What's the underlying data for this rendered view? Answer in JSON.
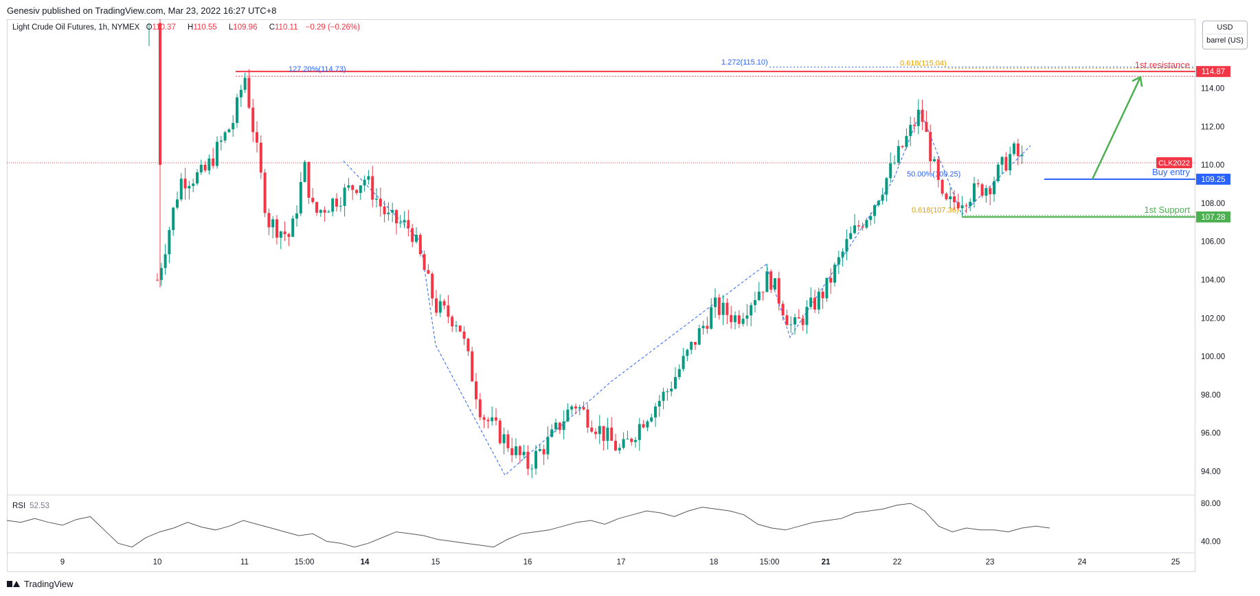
{
  "header": {
    "published_text": "Genesiv published on TradingView.com, Mar 23, 2022 16:27 UTC+8"
  },
  "legend": {
    "symbol": "Light Crude Oil Futures, 1h, NYMEX",
    "o_label": "O",
    "o_value": "110.37",
    "h_label": "H",
    "h_value": "110.55",
    "l_label": "L",
    "l_value": "109.96",
    "c_label": "C",
    "c_value": "110.11",
    "change": "−0.29 (−0.26%)"
  },
  "unit_box": {
    "currency": "USD",
    "unit": "barrel (US)"
  },
  "rsi": {
    "label": "RSI",
    "value": "52.53",
    "y_ticks": [
      "80.00",
      "40.00"
    ]
  },
  "footer": {
    "brand": "TradingView"
  },
  "colors": {
    "bull": "#089981",
    "bear": "#f23645",
    "resistance": "#f23645",
    "support": "#4caf50",
    "buy": "#2962ff",
    "fib_blue": "#2962ff",
    "fib_orange": "#e6a200",
    "rsi_line": "#555555"
  },
  "chart_data": {
    "type": "candlestick",
    "title": "Light Crude Oil Futures, 1h, NYMEX",
    "ylim": [
      92.8,
      117.6
    ],
    "y_ticks": [
      94,
      96,
      98,
      100,
      102,
      104,
      106,
      108,
      110,
      112,
      114
    ],
    "y_tick_labels": [
      "94.00",
      "96.00",
      "98.00",
      "100.00",
      "102.00",
      "104.00",
      "106.00",
      "108.00",
      "110.00",
      "112.00",
      "114.00"
    ],
    "x_tick_labels": [
      "9",
      "10",
      "11",
      "15:00",
      "14",
      "15",
      "16",
      "17",
      "18",
      "15:00",
      "21",
      "22",
      "23",
      "24",
      "25"
    ],
    "x_tick_bold": [
      false,
      false,
      false,
      false,
      true,
      false,
      false,
      false,
      false,
      false,
      true,
      false,
      false,
      false,
      false
    ],
    "current_price": {
      "label": "CLK2022",
      "value": 110.11
    },
    "price_series": [
      [
        "10",
        104.0
      ],
      [
        "10 +6h",
        109.2
      ],
      [
        "10 +12h",
        109.5
      ],
      [
        "10 +20h",
        112.4
      ],
      [
        "11",
        114.73
      ],
      [
        "11 +6h",
        107.1
      ],
      [
        "11 +12h",
        106.2
      ],
      [
        "11 +18h",
        107.4
      ],
      [
        "15:00",
        109.9
      ],
      [
        "14",
        109.3
      ],
      [
        "14 +6h",
        107.2
      ],
      [
        "14 +12h",
        106.7
      ],
      [
        "15",
        102.6
      ],
      [
        "15 +6h",
        101.8
      ],
      [
        "15 +12h",
        97.0
      ],
      [
        "16",
        94.3
      ],
      [
        "16 +6h",
        95.7
      ],
      [
        "16 +12h",
        97.6
      ],
      [
        "17",
        95.0
      ],
      [
        "17 +6h",
        96.8
      ],
      [
        "17 +12h",
        98.2
      ],
      [
        "18",
        102.6
      ],
      [
        "18 +6h",
        102.0
      ],
      [
        "15:00",
        104.2
      ],
      [
        "15:00 +6h",
        101.4
      ],
      [
        "21",
        103.5
      ],
      [
        "21 +6h",
        106.1
      ],
      [
        "21 +12h",
        107.8
      ],
      [
        "22",
        110.4
      ],
      [
        "22 +6h",
        112.8
      ],
      [
        "22 +12h",
        107.8
      ],
      [
        "23",
        109.0
      ],
      [
        "23 +6h",
        110.7
      ],
      [
        "23 +9h",
        110.11
      ]
    ],
    "rsi_ylim": [
      28,
      88
    ],
    "rsi_series": [
      62,
      60,
      64,
      60,
      57,
      63,
      66,
      52,
      38,
      34,
      44,
      50,
      54,
      60,
      55,
      52,
      56,
      62,
      58,
      54,
      50,
      46,
      48,
      40,
      38,
      34,
      38,
      44,
      50,
      48,
      46,
      42,
      40,
      38,
      36,
      34,
      42,
      48,
      50,
      52,
      56,
      60,
      62,
      58,
      64,
      68,
      72,
      70,
      66,
      72,
      76,
      74,
      72,
      68,
      58,
      54,
      52,
      56,
      60,
      62,
      64,
      70,
      72,
      74,
      78,
      80,
      72,
      56,
      50,
      54,
      52,
      52,
      50,
      54,
      56,
      54
    ],
    "annotations": {
      "resistance": {
        "label": "1st resistance",
        "value": 114.87
      },
      "buy_entry": {
        "label": "Buy entry",
        "value": 109.25
      },
      "support": {
        "label": "1st Support",
        "value": 107.28
      },
      "fib_levels": [
        {
          "label": "127.20%(114.73)",
          "value": 114.73,
          "color": "blue"
        },
        {
          "label": "1.272(115.10)",
          "value": 115.1,
          "color": "blue"
        },
        {
          "label": "0.618(115.04)",
          "value": 115.04,
          "color": "orange"
        },
        {
          "label": "50.00%(109.25)",
          "value": 109.25,
          "color": "blue"
        },
        {
          "label": "0.618(107.36)",
          "value": 107.36,
          "color": "orange"
        }
      ]
    }
  }
}
